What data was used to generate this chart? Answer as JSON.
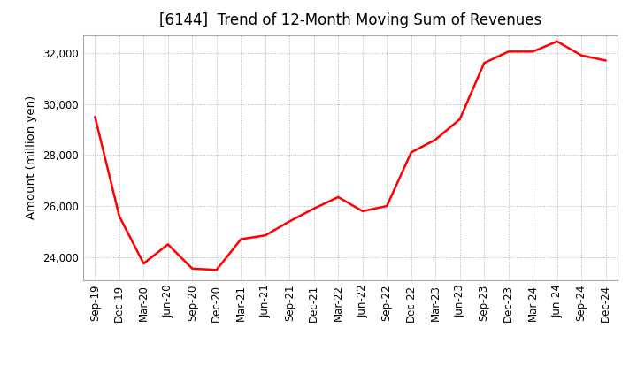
{
  "title": "[6144]  Trend of 12-Month Moving Sum of Revenues",
  "ylabel": "Amount (million yen)",
  "line_color": "#ff0000",
  "background_color": "#ffffff",
  "plot_background_color": "#ffffff",
  "grid_color": "#b0b0b0",
  "title_fontsize": 12,
  "axis_fontsize": 8.5,
  "ylabel_fontsize": 9.5,
  "x_labels": [
    "Sep-19",
    "Dec-19",
    "Mar-20",
    "Jun-20",
    "Sep-20",
    "Dec-20",
    "Mar-21",
    "Jun-21",
    "Sep-21",
    "Dec-21",
    "Mar-22",
    "Jun-22",
    "Sep-22",
    "Dec-22",
    "Mar-23",
    "Jun-23",
    "Sep-23",
    "Dec-23",
    "Mar-24",
    "Jun-24",
    "Sep-24",
    "Dec-24"
  ],
  "y_values": [
    29500,
    25600,
    23750,
    24500,
    23550,
    23500,
    24700,
    24850,
    25400,
    25900,
    26350,
    25800,
    26000,
    28100,
    28600,
    29400,
    31600,
    32050,
    32050,
    32450,
    31900,
    31700
  ],
  "yticks": [
    24000,
    26000,
    28000,
    30000,
    32000
  ],
  "ylim": [
    23100,
    32700
  ]
}
